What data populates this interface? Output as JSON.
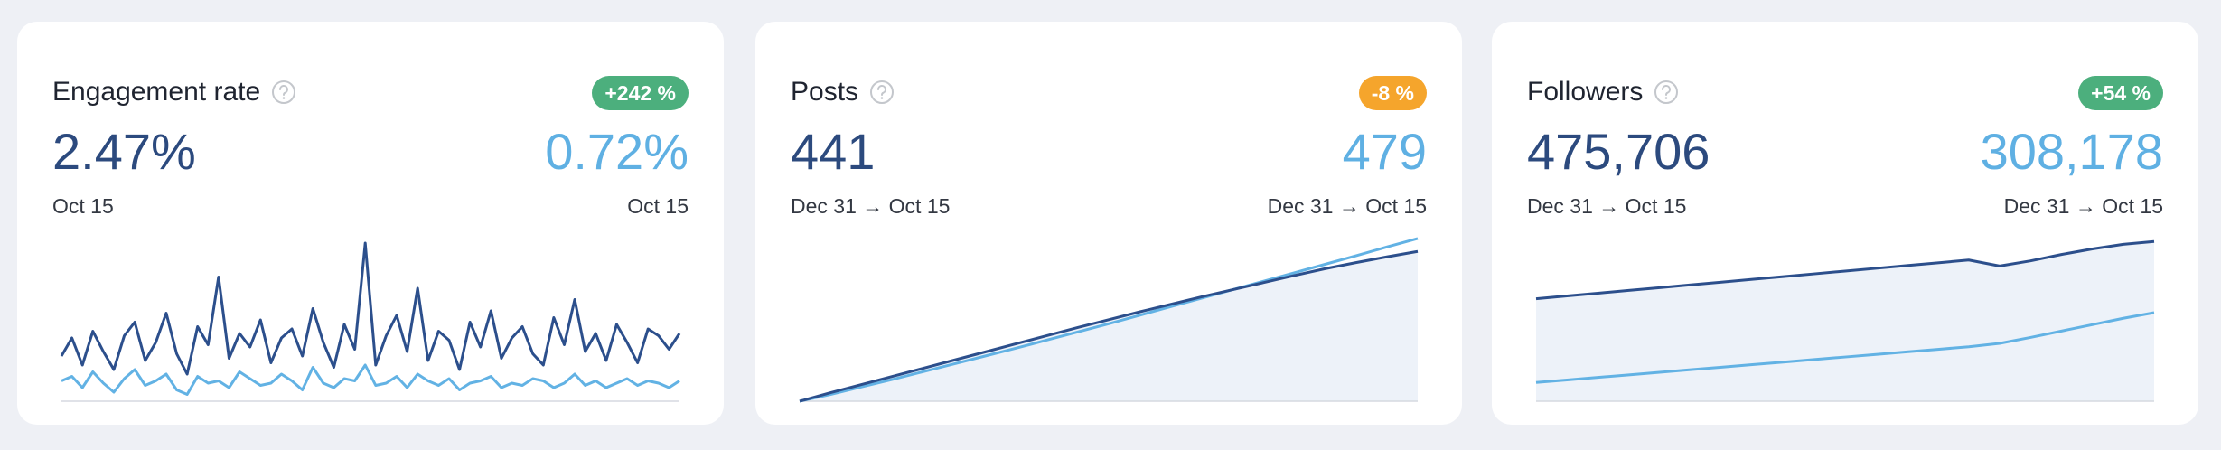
{
  "cards": [
    {
      "title": "Engagement rate",
      "badge": "+242 %",
      "badge_color": "#4caf7d",
      "current": "2.47%",
      "previous": "0.72%",
      "current_date": "Oct 15",
      "previous_date": "Oct 15",
      "chart": {
        "type": "line",
        "area": false,
        "ylim": [
          0,
          8
        ],
        "series": [
          {
            "color": "#2c4f8c",
            "values": [
              2.0,
              2.8,
              1.6,
              3.1,
              2.2,
              1.4,
              2.9,
              3.5,
              1.8,
              2.6,
              3.9,
              2.1,
              1.2,
              3.3,
              2.5,
              5.5,
              1.9,
              3.0,
              2.4,
              3.6,
              1.7,
              2.8,
              3.2,
              2.0,
              4.1,
              2.6,
              1.5,
              3.4,
              2.3,
              7.0,
              1.6,
              2.9,
              3.8,
              2.2,
              5.0,
              1.8,
              3.1,
              2.7,
              1.4,
              3.5,
              2.4,
              4.0,
              1.9,
              2.8,
              3.3,
              2.1,
              1.6,
              3.7,
              2.5,
              4.5,
              2.2,
              3.0,
              1.8,
              3.4,
              2.6,
              1.7,
              3.2,
              2.9,
              2.3,
              3.0
            ]
          },
          {
            "color": "#62b2e4",
            "values": [
              0.9,
              1.1,
              0.6,
              1.3,
              0.8,
              0.4,
              1.0,
              1.4,
              0.7,
              0.9,
              1.2,
              0.5,
              0.3,
              1.1,
              0.8,
              0.9,
              0.6,
              1.3,
              1.0,
              0.7,
              0.8,
              1.2,
              0.9,
              0.5,
              1.5,
              0.8,
              0.6,
              1.0,
              0.9,
              1.6,
              0.7,
              0.8,
              1.1,
              0.6,
              1.2,
              0.9,
              0.7,
              1.0,
              0.5,
              0.8,
              0.9,
              1.1,
              0.6,
              0.8,
              0.7,
              1.0,
              0.9,
              0.6,
              0.8,
              1.2,
              0.7,
              0.9,
              0.6,
              0.8,
              1.0,
              0.7,
              0.9,
              0.8,
              0.6,
              0.9
            ]
          }
        ]
      }
    },
    {
      "title": "Posts",
      "badge": "-8 %",
      "badge_color": "#f5a52c",
      "current": "441",
      "previous": "479",
      "current_date": "Dec 31 → Oct 15",
      "previous_date": "Dec 31 → Oct 15",
      "chart": {
        "type": "line",
        "area": true,
        "ylim": [
          0,
          532
        ],
        "series": [
          {
            "color": "#2c4f8c",
            "values": [
              0,
              25,
              49,
              73,
              97,
              121,
              145,
              169,
              193,
              217,
              240,
              263,
              285,
              307,
              328,
              349,
              370,
              390,
              408,
              425,
              441
            ]
          },
          {
            "color": "#62b2e4",
            "values": [
              0,
              20,
              42,
              64,
              87,
              110,
              133,
              156,
              180,
              204,
              228,
              253,
              278,
              303,
              328,
              353,
              378,
              403,
              428,
              454,
              479
            ]
          }
        ]
      }
    },
    {
      "title": "Followers",
      "badge": "+54 %",
      "badge_color": "#4caf7d",
      "current": "475,706",
      "previous": "308,178",
      "current_date": "Dec 31 → Oct 15",
      "previous_date": "Dec 31 → Oct 15",
      "chart": {
        "type": "line",
        "area": true,
        "ylim": [
          100000,
          525000
        ],
        "series": [
          {
            "color": "#2c4f8c",
            "values": [
              341000,
              347500,
              354000,
              360500,
              367000,
              373500,
              380000,
              386500,
              393000,
              399500,
              406000,
              412500,
              419000,
              425500,
              432000,
              418000,
              430000,
              445000,
              458000,
              469000,
              475706
            ]
          },
          {
            "color": "#62b2e4",
            "values": [
              144000,
              150000,
              156000,
              162000,
              168000,
              174000,
              180000,
              186000,
              192000,
              198000,
              204000,
              210000,
              216000,
              222000,
              228000,
              236000,
              250000,
              265000,
              280000,
              295000,
              308178
            ]
          }
        ]
      }
    }
  ]
}
